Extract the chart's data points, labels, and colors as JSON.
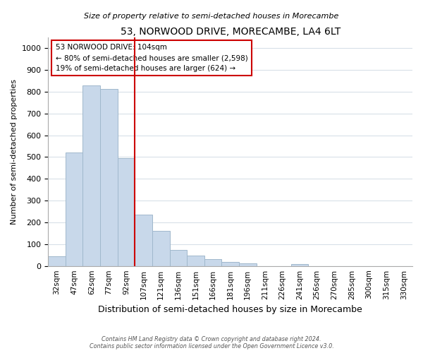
{
  "title": "53, NORWOOD DRIVE, MORECAMBE, LA4 6LT",
  "subtitle": "Size of property relative to semi-detached houses in Morecambe",
  "xlabel": "Distribution of semi-detached houses by size in Morecambe",
  "ylabel": "Number of semi-detached properties",
  "bar_labels": [
    "32sqm",
    "47sqm",
    "62sqm",
    "77sqm",
    "92sqm",
    "107sqm",
    "121sqm",
    "136sqm",
    "151sqm",
    "166sqm",
    "181sqm",
    "196sqm",
    "211sqm",
    "226sqm",
    "241sqm",
    "256sqm",
    "270sqm",
    "285sqm",
    "300sqm",
    "315sqm",
    "330sqm"
  ],
  "bar_values": [
    43,
    521,
    829,
    813,
    496,
    235,
    162,
    75,
    47,
    32,
    19,
    12,
    0,
    0,
    10,
    0,
    0,
    0,
    0,
    0,
    0
  ],
  "bar_color": "#c8d8ea",
  "bar_edge_color": "#a0b8cc",
  "vline_color": "#cc0000",
  "annotation_text": "53 NORWOOD DRIVE: 104sqm\n← 80% of semi-detached houses are smaller (2,598)\n19% of semi-detached houses are larger (624) →",
  "annotation_box_facecolor": "#ffffff",
  "annotation_box_edgecolor": "#cc0000",
  "ylim": [
    0,
    1050
  ],
  "yticks": [
    0,
    100,
    200,
    300,
    400,
    500,
    600,
    700,
    800,
    900,
    1000
  ],
  "footer_line1": "Contains HM Land Registry data © Crown copyright and database right 2024.",
  "footer_line2": "Contains public sector information licensed under the Open Government Licence v3.0.",
  "background_color": "#ffffff",
  "grid_color": "#d8e0e8"
}
